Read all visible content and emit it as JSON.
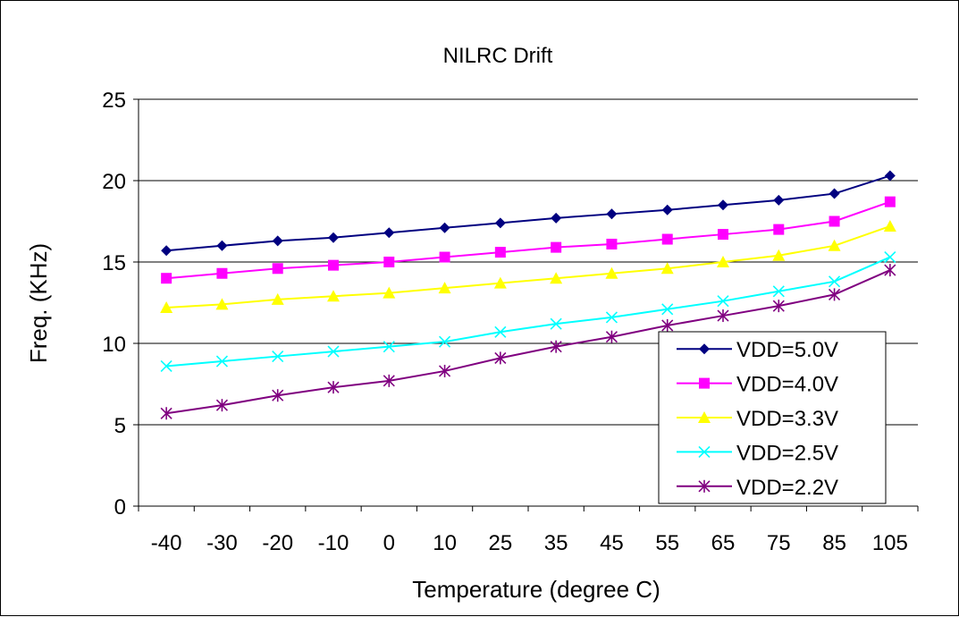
{
  "chart_data": {
    "type": "line",
    "title": "NILRC Drift",
    "xlabel": "Temperature (degree C)",
    "ylabel": "Freq. (KHz)",
    "categories": [
      "-40",
      "-30",
      "-20",
      "-10",
      "0",
      "10",
      "25",
      "35",
      "45",
      "55",
      "65",
      "75",
      "85",
      "105"
    ],
    "ylim": [
      0,
      25
    ],
    "yticks": [
      0,
      5,
      10,
      15,
      20,
      25
    ],
    "grid": "horizontal",
    "legend_position": "bottom-right",
    "series": [
      {
        "name": "VDD=5.0V",
        "color": "#000080",
        "marker": "diamond",
        "values": [
          15.7,
          16.0,
          16.3,
          16.5,
          16.8,
          17.1,
          17.4,
          17.7,
          17.95,
          18.2,
          18.5,
          18.8,
          19.2,
          20.3
        ]
      },
      {
        "name": "VDD=4.0V",
        "color": "#ff00ff",
        "marker": "square",
        "values": [
          14.0,
          14.3,
          14.6,
          14.8,
          15.0,
          15.3,
          15.6,
          15.9,
          16.1,
          16.4,
          16.7,
          17.0,
          17.5,
          18.7
        ]
      },
      {
        "name": "VDD=3.3V",
        "color": "#ffff00",
        "marker": "triangle",
        "values": [
          12.2,
          12.4,
          12.7,
          12.9,
          13.1,
          13.4,
          13.7,
          14.0,
          14.3,
          14.6,
          15.0,
          15.4,
          16.0,
          17.2
        ]
      },
      {
        "name": "VDD=2.5V",
        "color": "#00ffff",
        "marker": "x",
        "values": [
          8.6,
          8.9,
          9.2,
          9.5,
          9.8,
          10.1,
          10.7,
          11.2,
          11.6,
          12.1,
          12.6,
          13.2,
          13.8,
          15.3
        ]
      },
      {
        "name": "VDD=2.2V",
        "color": "#800080",
        "marker": "star",
        "values": [
          5.7,
          6.2,
          6.8,
          7.3,
          7.7,
          8.3,
          9.1,
          9.8,
          10.4,
          11.1,
          11.7,
          12.3,
          13.0,
          14.5
        ]
      }
    ]
  }
}
